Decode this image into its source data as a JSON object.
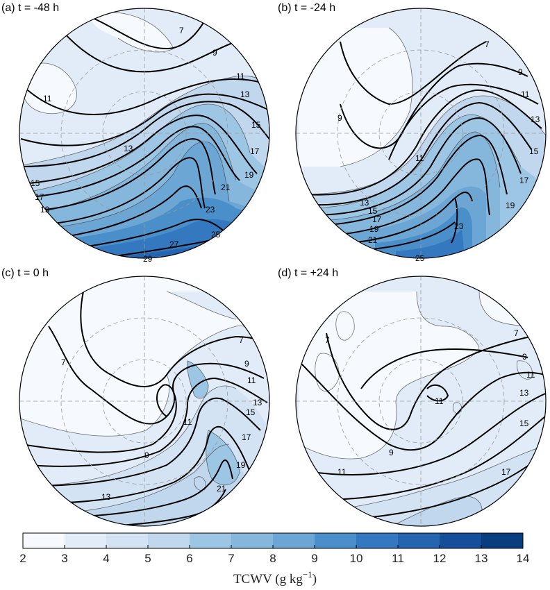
{
  "chart_data": {
    "type": "contour",
    "variable": "TCWV",
    "colorbar": {
      "label_text": "TCWV (g kg",
      "label_exponent": "−1",
      "label_close": ")",
      "levels": [
        2,
        3,
        4,
        5,
        6,
        7,
        8,
        9,
        10,
        11,
        12,
        13,
        14
      ],
      "colors": [
        "#f6fafe",
        "#e1ecf8",
        "#d3e3f4",
        "#c0d7ee",
        "#9dc6e4",
        "#85b7dd",
        "#6ca6d5",
        "#4a8fc9",
        "#3478bf",
        "#2565b0",
        "#154f9a",
        "#0a3c80"
      ]
    },
    "panels": [
      {
        "label": "(a) t = -48 h",
        "contour_labels": [
          "7",
          "9",
          "11",
          "13",
          "15",
          "17",
          "19",
          "21",
          "23",
          "25",
          "27",
          "29",
          "11",
          "13",
          "15",
          "17",
          "19"
        ]
      },
      {
        "label": "(b) t = -24 h",
        "contour_labels": [
          "7",
          "9",
          "11",
          "13",
          "15",
          "17",
          "19",
          "9",
          "11",
          "13",
          "15",
          "17",
          "19",
          "21",
          "23",
          "25"
        ]
      },
      {
        "label": "(c) t = 0 h",
        "contour_labels": [
          "7",
          "7",
          "9",
          "11",
          "13",
          "15",
          "17",
          "19",
          "21",
          "9",
          "11",
          "13"
        ]
      },
      {
        "label": "(d) t = +24 h",
        "contour_labels": [
          "7",
          "7",
          "9",
          "11",
          "13",
          "15",
          "17",
          "11",
          "9",
          "11"
        ]
      }
    ]
  }
}
